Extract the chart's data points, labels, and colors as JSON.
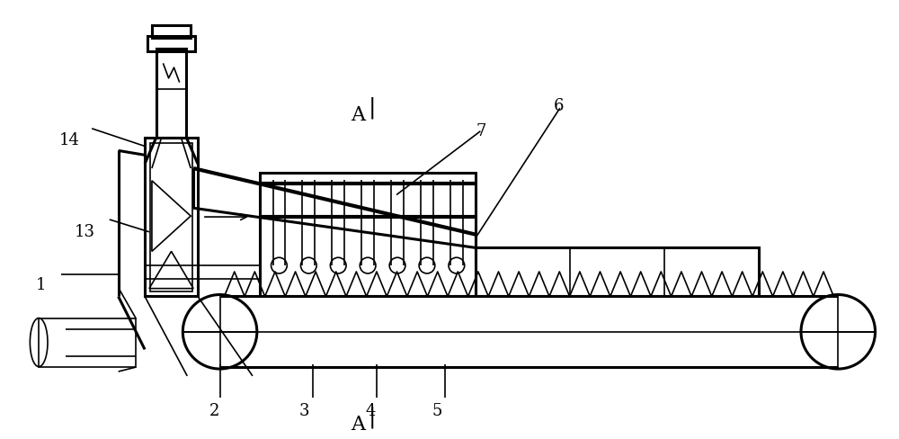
{
  "bg_color": "#ffffff",
  "line_color": "#000000",
  "lw": 1.2,
  "lw2": 2.2,
  "lw3": 3.0,
  "fig_width": 10.0,
  "fig_height": 4.89
}
